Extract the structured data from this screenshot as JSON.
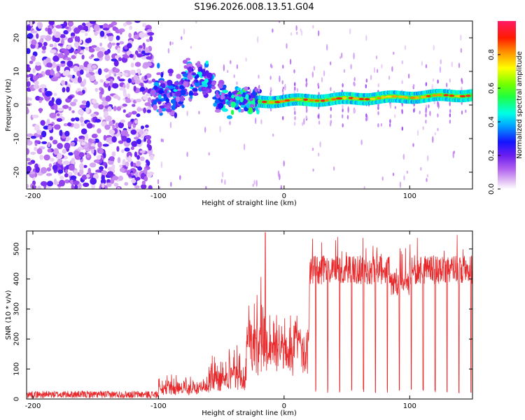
{
  "figure_title": "S196.2026.008.13.51.G04",
  "chart_data": [
    {
      "type": "heatmap",
      "name": "spectrogram",
      "xlabel": "Height of straight line (km)",
      "ylabel": "Frequency (Hz)",
      "xlim": [
        -205,
        150
      ],
      "ylim": [
        -25,
        25
      ],
      "x_ticks": [
        -200,
        -100,
        0,
        100
      ],
      "y_ticks": [
        -20,
        -10,
        0,
        10,
        20
      ],
      "colorbar": {
        "label": "Normalized spectral amplitude",
        "range": [
          0.0,
          1.0
        ],
        "ticks": [
          0.0,
          0.2,
          0.4,
          0.6,
          0.8
        ]
      },
      "regions": [
        {
          "x_range": [
            -205,
            -105
          ],
          "description_value": "noise",
          "amplitude": [
            0.0,
            0.25
          ],
          "freq_spread": [
            -25,
            25
          ]
        },
        {
          "x_range": [
            -105,
            -20
          ],
          "amplitude": [
            0.1,
            0.55
          ],
          "freq_spread": [
            -8,
            13
          ]
        },
        {
          "x_range": [
            -20,
            150
          ],
          "amplitude": [
            0.4,
            1.0
          ],
          "center_frequency": [
            1,
            3
          ]
        }
      ]
    },
    {
      "type": "line",
      "name": "snr",
      "xlabel": "Height of straight line (km)",
      "ylabel": "SNR (10 * v/v)",
      "xlim": [
        -205,
        150
      ],
      "ylim": [
        0,
        560
      ],
      "x_ticks": [
        -200,
        -100,
        0,
        100
      ],
      "y_ticks": [
        0,
        100,
        200,
        300,
        400,
        500
      ],
      "color": "#e8282a",
      "segments": [
        {
          "x_range": [
            -205,
            -100
          ],
          "baseline": 15,
          "noise": 12
        },
        {
          "x_range": [
            -100,
            -60
          ],
          "baseline": 30,
          "noise": 60
        },
        {
          "x_range": [
            -60,
            -30
          ],
          "baseline": 60,
          "noise": 110
        },
        {
          "x_range": [
            -30,
            -15
          ],
          "baseline": 180,
          "noise": 220
        },
        {
          "x_range": [
            -15,
            20
          ],
          "baseline": 180,
          "noise": 120
        },
        {
          "x_range": [
            20,
            150
          ],
          "baseline": 430,
          "noise": 60
        }
      ],
      "peak": {
        "x": -15,
        "y": 555
      },
      "dips_start": 25,
      "dip_spacing_km": 9.5
    }
  ]
}
